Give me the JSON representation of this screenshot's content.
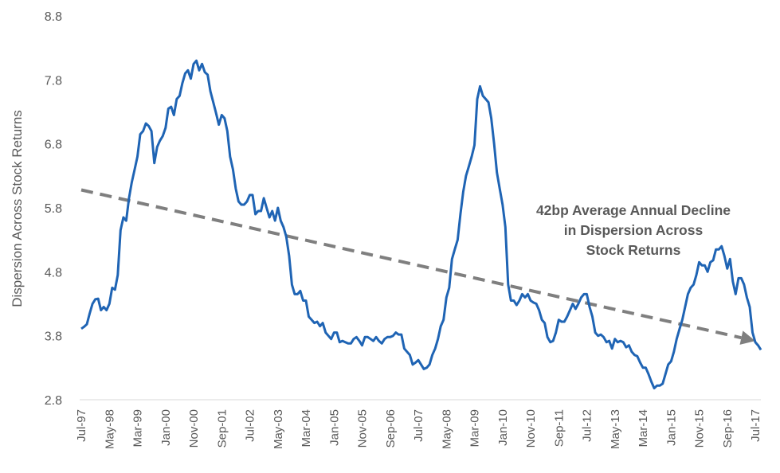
{
  "chart_data": {
    "type": "line",
    "xlabel": "",
    "ylabel": "Dispersion Across Stock Returns",
    "ylim": [
      2.8,
      8.8
    ],
    "y_ticks": [
      "8.8",
      "7.8",
      "6.8",
      "5.8",
      "4.8",
      "3.8",
      "2.8"
    ],
    "grid": false,
    "legend": "none",
    "x_tick_labels": [
      "Jul-97",
      "May-98",
      "Mar-99",
      "Jan-00",
      "Nov-00",
      "Sep-01",
      "Jul-02",
      "May-03",
      "Mar-04",
      "Jan-05",
      "Nov-05",
      "Sep-06",
      "Jul-07",
      "May-08",
      "Mar-09",
      "Jan-10",
      "Nov-10",
      "Sep-11",
      "Jul-12",
      "May-13",
      "Mar-14",
      "Jan-15",
      "Nov-15",
      "Sep-16",
      "Jul-17"
    ],
    "annotation": [
      "42bp Average Annual Decline",
      "in Dispersion Across",
      "Stock Returns"
    ],
    "colors": {
      "series": "#1f64b4",
      "trend": "#7f7f7f",
      "text": "#595959"
    },
    "series": [
      {
        "x": [
          "1997-07",
          "1997-08",
          "1997-09",
          "1997-10",
          "1997-11",
          "1997-12",
          "1998-01",
          "1998-02",
          "1998-03",
          "1998-04",
          "1998-05",
          "1998-06",
          "1998-07",
          "1998-08",
          "1998-09",
          "1998-10",
          "1998-11",
          "1998-12",
          "1999-01",
          "1999-02",
          "1999-03",
          "1999-04",
          "1999-05",
          "1999-06",
          "1999-07",
          "1999-08",
          "1999-09",
          "1999-10",
          "1999-11",
          "1999-12",
          "2000-01",
          "2000-02",
          "2000-03",
          "2000-04",
          "2000-05",
          "2000-06",
          "2000-07",
          "2000-08",
          "2000-09",
          "2000-10",
          "2000-11",
          "2000-12",
          "2001-01",
          "2001-02",
          "2001-03",
          "2001-04",
          "2001-05",
          "2001-06",
          "2001-07",
          "2001-08",
          "2001-09",
          "2001-10",
          "2001-11",
          "2001-12",
          "2002-01",
          "2002-02",
          "2002-03",
          "2002-04",
          "2002-05",
          "2002-06",
          "2002-07",
          "2002-08",
          "2002-09",
          "2002-10",
          "2002-11",
          "2002-12",
          "2003-01",
          "2003-02",
          "2003-03",
          "2003-04",
          "2003-05",
          "2003-06",
          "2003-07",
          "2003-08",
          "2003-09",
          "2003-10",
          "2003-11",
          "2003-12",
          "2004-01",
          "2004-02",
          "2004-03",
          "2004-04",
          "2004-05",
          "2004-06",
          "2004-07",
          "2004-08",
          "2004-09",
          "2004-10",
          "2004-11",
          "2004-12",
          "2005-01",
          "2005-02",
          "2005-03",
          "2005-04",
          "2005-05",
          "2005-06",
          "2005-07",
          "2005-08",
          "2005-09",
          "2005-10",
          "2005-11",
          "2005-12",
          "2006-01",
          "2006-02",
          "2006-03",
          "2006-04",
          "2006-05",
          "2006-06",
          "2006-07",
          "2006-08",
          "2006-09",
          "2006-10",
          "2006-11",
          "2006-12",
          "2007-01",
          "2007-02",
          "2007-03",
          "2007-04",
          "2007-05",
          "2007-06",
          "2007-07",
          "2007-08",
          "2007-09",
          "2007-10",
          "2007-11",
          "2007-12",
          "2008-01",
          "2008-02",
          "2008-03",
          "2008-04",
          "2008-05",
          "2008-06",
          "2008-07",
          "2008-08",
          "2008-09",
          "2008-10",
          "2008-11",
          "2008-12",
          "2009-01",
          "2009-02",
          "2009-03",
          "2009-04",
          "2009-05",
          "2009-06",
          "2009-07",
          "2009-08",
          "2009-09",
          "2009-10",
          "2009-11",
          "2009-12",
          "2010-01",
          "2010-02",
          "2010-03",
          "2010-04",
          "2010-05",
          "2010-06",
          "2010-07",
          "2010-08",
          "2010-09",
          "2010-10",
          "2010-11",
          "2010-12",
          "2011-01",
          "2011-02",
          "2011-03",
          "2011-04",
          "2011-05",
          "2011-06",
          "2011-07",
          "2011-08",
          "2011-09",
          "2011-10",
          "2011-11",
          "2011-12",
          "2012-01",
          "2012-02",
          "2012-03",
          "2012-04",
          "2012-05",
          "2012-06",
          "2012-07",
          "2012-08",
          "2012-09",
          "2012-10",
          "2012-11",
          "2012-12",
          "2013-01",
          "2013-02",
          "2013-03",
          "2013-04",
          "2013-05",
          "2013-06",
          "2013-07",
          "2013-08",
          "2013-09",
          "2013-10",
          "2013-11",
          "2013-12",
          "2014-01",
          "2014-02",
          "2014-03",
          "2014-04",
          "2014-05",
          "2014-06",
          "2014-07",
          "2014-08",
          "2014-09",
          "2014-10",
          "2014-11",
          "2014-12",
          "2015-01",
          "2015-02",
          "2015-03",
          "2015-04",
          "2015-05",
          "2015-06",
          "2015-07",
          "2015-08",
          "2015-09",
          "2015-10",
          "2015-11",
          "2015-12",
          "2016-01",
          "2016-02",
          "2016-03",
          "2016-04",
          "2016-05",
          "2016-06",
          "2016-07",
          "2016-08",
          "2016-09",
          "2016-10",
          "2016-11",
          "2016-12",
          "2017-01",
          "2017-02",
          "2017-03",
          "2017-04",
          "2017-05",
          "2017-06",
          "2017-07",
          "2017-08",
          "2017-09"
        ],
        "values": [
          3.91,
          3.94,
          3.98,
          4.15,
          4.3,
          4.37,
          4.38,
          4.2,
          4.25,
          4.2,
          4.3,
          4.55,
          4.52,
          4.75,
          5.45,
          5.65,
          5.6,
          5.95,
          6.2,
          6.4,
          6.6,
          6.95,
          7.0,
          7.12,
          7.08,
          7.0,
          6.5,
          6.75,
          6.85,
          6.92,
          7.05,
          7.35,
          7.38,
          7.25,
          7.5,
          7.55,
          7.75,
          7.9,
          7.95,
          7.82,
          8.05,
          8.1,
          7.95,
          8.05,
          7.92,
          7.88,
          7.62,
          7.45,
          7.28,
          7.1,
          7.25,
          7.2,
          7.0,
          6.6,
          6.4,
          6.1,
          5.9,
          5.85,
          5.85,
          5.9,
          6.0,
          6.0,
          5.7,
          5.75,
          5.75,
          5.95,
          5.8,
          5.65,
          5.75,
          5.6,
          5.8,
          5.6,
          5.5,
          5.35,
          5.05,
          4.6,
          4.45,
          4.45,
          4.5,
          4.35,
          4.35,
          4.1,
          4.05,
          4.0,
          4.02,
          3.95,
          4.0,
          3.85,
          3.8,
          3.75,
          3.85,
          3.85,
          3.7,
          3.72,
          3.7,
          3.68,
          3.68,
          3.75,
          3.78,
          3.72,
          3.65,
          3.78,
          3.78,
          3.75,
          3.72,
          3.78,
          3.72,
          3.68,
          3.75,
          3.78,
          3.78,
          3.8,
          3.85,
          3.82,
          3.82,
          3.6,
          3.55,
          3.5,
          3.35,
          3.38,
          3.42,
          3.35,
          3.28,
          3.3,
          3.35,
          3.5,
          3.6,
          3.75,
          3.95,
          4.05,
          4.4,
          4.55,
          5.0,
          5.15,
          5.3,
          5.7,
          6.05,
          6.3,
          6.45,
          6.6,
          6.78,
          7.5,
          7.7,
          7.55,
          7.5,
          7.45,
          7.2,
          6.8,
          6.35,
          6.1,
          5.85,
          5.5,
          4.6,
          4.35,
          4.35,
          4.28,
          4.35,
          4.45,
          4.4,
          4.45,
          4.35,
          4.32,
          4.3,
          4.2,
          4.05,
          4.0,
          3.78,
          3.7,
          3.72,
          3.85,
          4.05,
          4.02,
          4.02,
          4.1,
          4.2,
          4.3,
          4.22,
          4.3,
          4.4,
          4.45,
          4.45,
          4.25,
          4.1,
          3.85,
          3.8,
          3.82,
          3.78,
          3.7,
          3.72,
          3.6,
          3.75,
          3.7,
          3.72,
          3.7,
          3.62,
          3.65,
          3.55,
          3.5,
          3.48,
          3.38,
          3.3,
          3.3,
          3.2,
          3.08,
          2.98,
          3.02,
          3.02,
          3.05,
          3.2,
          3.35,
          3.4,
          3.55,
          3.75,
          3.9,
          4.05,
          4.25,
          4.45,
          4.55,
          4.6,
          4.75,
          4.95,
          4.9,
          4.9,
          4.8,
          4.95,
          4.98,
          5.15,
          5.15,
          5.2,
          5.05,
          4.85,
          5.0,
          4.65,
          4.45,
          4.7,
          4.7,
          4.6,
          4.4,
          4.25,
          3.85,
          3.7,
          3.65,
          3.58
        ]
      }
    ],
    "trend": {
      "x": [
        "1997-07",
        "2017-07"
      ],
      "y": [
        6.08,
        3.72
      ]
    }
  }
}
